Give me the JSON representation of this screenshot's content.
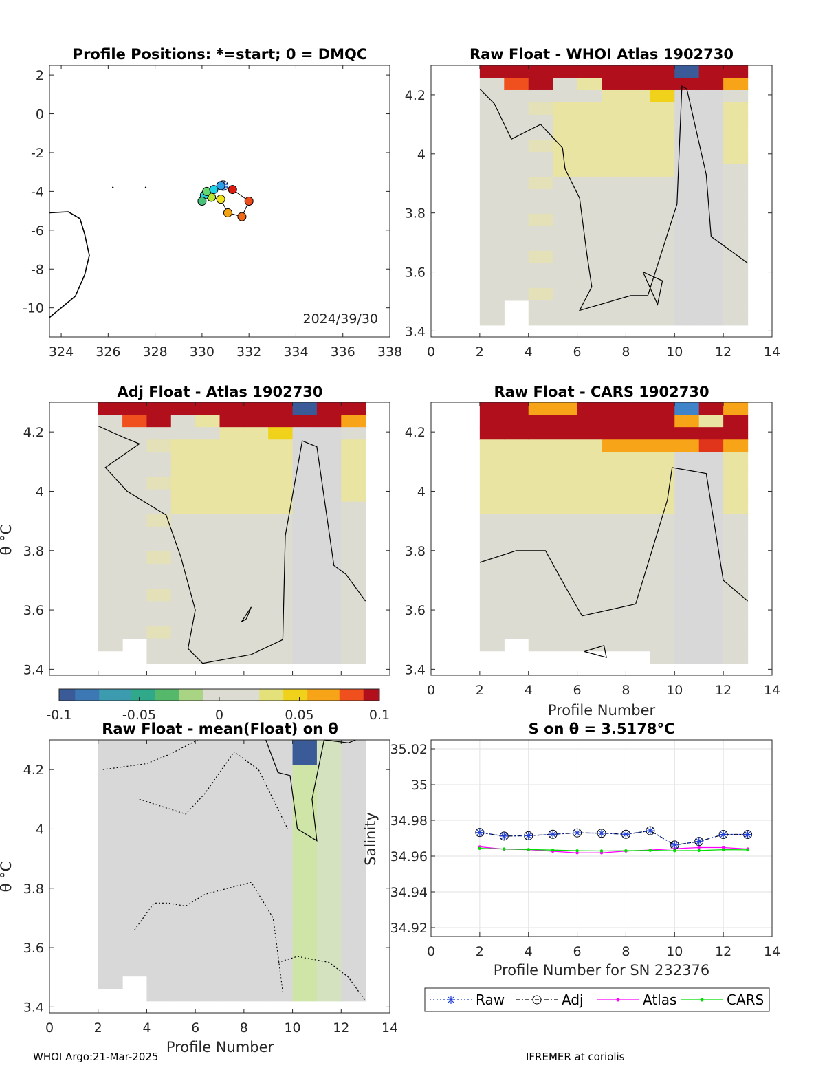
{
  "footer": {
    "left": "WHOI Argo:21-Mar-2025",
    "right": "IFREMER at coriolis"
  },
  "colors": {
    "high": "#b20f1d",
    "low": "#3a5a98",
    "neutral": "#dcdcd2",
    "raw": "#1f3fd6",
    "adj": "#000000",
    "atlas": "#ff00ff",
    "cars": "#00dd00"
  },
  "panels": {
    "map": {
      "title": "Profile Positions: *=start; 0 = DMQC",
      "date_label": "2024/39/30",
      "xticks": [
        "324",
        "326",
        "328",
        "330",
        "332",
        "334",
        "336",
        "338"
      ],
      "yticks": [
        "2",
        "0",
        "-2",
        "-4",
        "-6",
        "-8",
        "-10"
      ]
    },
    "raw_atlas": {
      "title": "Raw Float - WHOI Atlas  1902730",
      "xticks": [
        "0",
        "2",
        "4",
        "6",
        "8",
        "10",
        "12",
        "14"
      ],
      "yticks": [
        "4.2",
        "4",
        "3.8",
        "3.6",
        "3.4"
      ]
    },
    "adj_atlas": {
      "title": "Adj Float - Atlas  1902730",
      "ylabel": "θ °C",
      "yticks": [
        "4.2",
        "4",
        "3.8",
        "3.6",
        "3.4"
      ]
    },
    "raw_cars": {
      "title": "Raw Float - CARS  1902730",
      "xlabel": "Profile Number",
      "xticks": [
        "0",
        "2",
        "4",
        "6",
        "8",
        "10",
        "12",
        "14"
      ],
      "yticks": [
        "4.2",
        "4",
        "3.8",
        "3.6",
        "3.4"
      ]
    },
    "raw_mean": {
      "title": "Raw Float - mean(Float) on θ",
      "xlabel": "Profile Number",
      "ylabel": "θ °C",
      "xticks": [
        "0",
        "2",
        "4",
        "6",
        "8",
        "10",
        "12",
        "14"
      ],
      "yticks": [
        "4.2",
        "4",
        "3.8",
        "3.6",
        "3.4"
      ]
    },
    "salinity": {
      "title": "S on θ = 3.5178°C",
      "xlabel": "Profile Number for SN 232376",
      "ylabel": "Salinity",
      "xticks": [
        "0",
        "2",
        "4",
        "6",
        "8",
        "10",
        "12",
        "14"
      ],
      "yticks": [
        "35.02",
        "35",
        "34.98",
        "34.96",
        "34.94",
        "34.92"
      ]
    }
  },
  "colorbar": {
    "ticks": [
      "-0.1",
      "-0.05",
      "0",
      "0.05",
      "0.1"
    ]
  },
  "legend": [
    "Raw",
    "Adj",
    "Atlas",
    "CARS"
  ],
  "chart_data": [
    {
      "type": "scatter",
      "name": "profile_positions",
      "title": "Profile Positions: *=start; 0 = DMQC",
      "xlim": [
        323.5,
        338
      ],
      "ylim": [
        -11.5,
        2.5
      ],
      "x": [
        330.9,
        331.3,
        332.0,
        331.7,
        331.1,
        330.8,
        330.4,
        330.1,
        330.0,
        330.2,
        330.5,
        330.8
      ],
      "y": [
        -3.7,
        -3.9,
        -4.5,
        -5.3,
        -5.1,
        -4.4,
        -4.3,
        -4.2,
        -4.5,
        -4.0,
        -3.9,
        -3.7
      ],
      "annotation": "2024/39/30"
    },
    {
      "type": "line",
      "name": "salinity_on_theta",
      "title": "S on θ = 3.5178°C",
      "xlabel": "Profile Number for SN 232376",
      "ylabel": "Salinity",
      "xlim": [
        0,
        14
      ],
      "ylim": [
        34.915,
        35.025
      ],
      "x": [
        2,
        3,
        4,
        5,
        6,
        7,
        8,
        9,
        10,
        11,
        12,
        13
      ],
      "series": [
        {
          "name": "Raw",
          "values": [
            34.9732,
            34.9712,
            34.9714,
            34.9722,
            34.973,
            34.9728,
            34.9722,
            34.9742,
            34.9662,
            34.9682,
            34.9721,
            34.9721
          ]
        },
        {
          "name": "Adj",
          "values": [
            34.9732,
            34.9712,
            34.9714,
            34.9722,
            34.973,
            34.9728,
            34.9722,
            34.9742,
            34.9662,
            34.9682,
            34.9721,
            34.9721
          ]
        },
        {
          "name": "Atlas",
          "values": [
            34.9652,
            34.9639,
            34.9636,
            34.9627,
            34.9618,
            34.9618,
            34.9628,
            34.9634,
            34.9642,
            34.9648,
            34.9648,
            34.964
          ]
        },
        {
          "name": "CARS",
          "values": [
            34.9643,
            34.964,
            34.9637,
            34.9634,
            34.963,
            34.9629,
            34.963,
            34.9632,
            34.963,
            34.9631,
            34.9636,
            34.9635
          ]
        }
      ],
      "legend_position": "bottom"
    },
    {
      "type": "heatmap",
      "name": "theta_difference_panels",
      "colorbar_range": [
        -0.1,
        0.1
      ],
      "x_range": [
        0,
        14
      ],
      "y_range": [
        3.38,
        4.3
      ]
    }
  ]
}
